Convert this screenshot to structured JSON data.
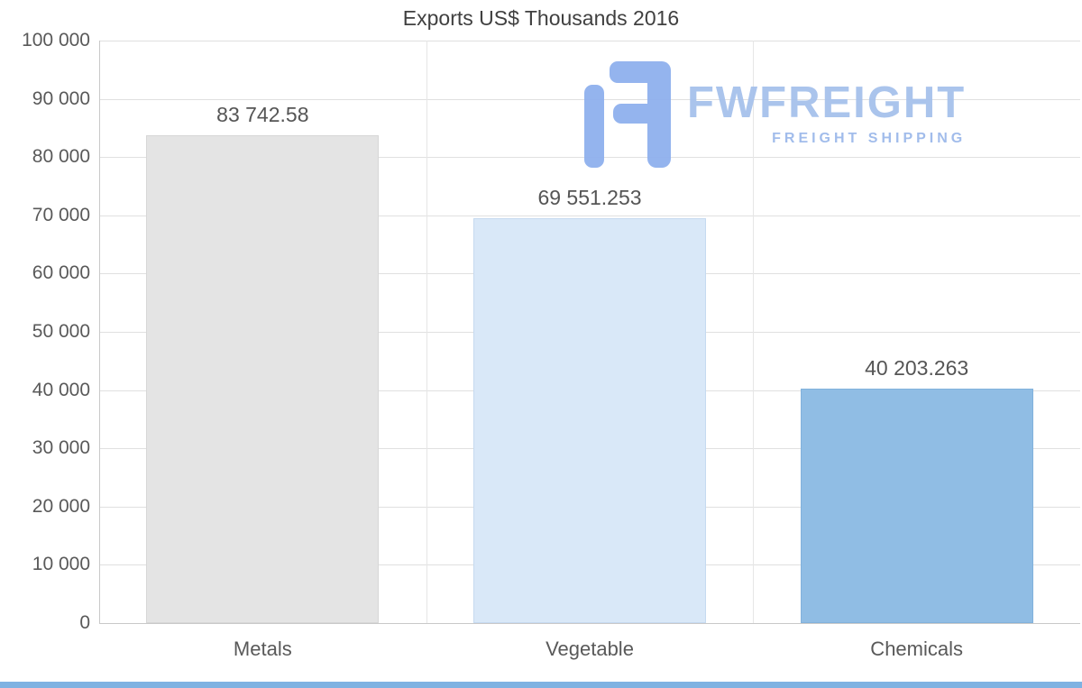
{
  "chart_data": {
    "type": "bar",
    "title": "Exports US$ Thousands 2016",
    "categories": [
      "Metals",
      "Vegetable",
      "Chemicals"
    ],
    "values": [
      83742.58,
      69551.253,
      40203.263
    ],
    "value_labels": [
      "83 742.58",
      "69 551.253",
      "40 203.263"
    ],
    "bar_colors": [
      "#e4e4e4",
      "#d9e8f8",
      "#90bde4"
    ],
    "bar_border_colors": [
      "#d7d7d7",
      "#c6daf0",
      "#82b2dc"
    ],
    "ylim": [
      0,
      100000
    ],
    "grid": true,
    "legend": "none",
    "y_ticks": [
      {
        "value": 0,
        "label": "0"
      },
      {
        "value": 10000,
        "label": "10 000"
      },
      {
        "value": 20000,
        "label": "20 000"
      },
      {
        "value": 30000,
        "label": "30 000"
      },
      {
        "value": 40000,
        "label": "40 000"
      },
      {
        "value": 50000,
        "label": "50 000"
      },
      {
        "value": 60000,
        "label": "60 000"
      },
      {
        "value": 70000,
        "label": "70 000"
      },
      {
        "value": 80000,
        "label": "80 000"
      },
      {
        "value": 90000,
        "label": "90 000"
      },
      {
        "value": 100000,
        "label": "100 000"
      }
    ],
    "xlabel": "",
    "ylabel": ""
  },
  "watermark": {
    "brand": "FWFREIGHT",
    "tagline": "FREIGHT SHIPPING",
    "icon_color": "#8fb0ee",
    "text_color": "#a6c1ec",
    "tagline_color": "#9db9ea"
  },
  "footer": {
    "accent_color": "#7fb2e2"
  }
}
